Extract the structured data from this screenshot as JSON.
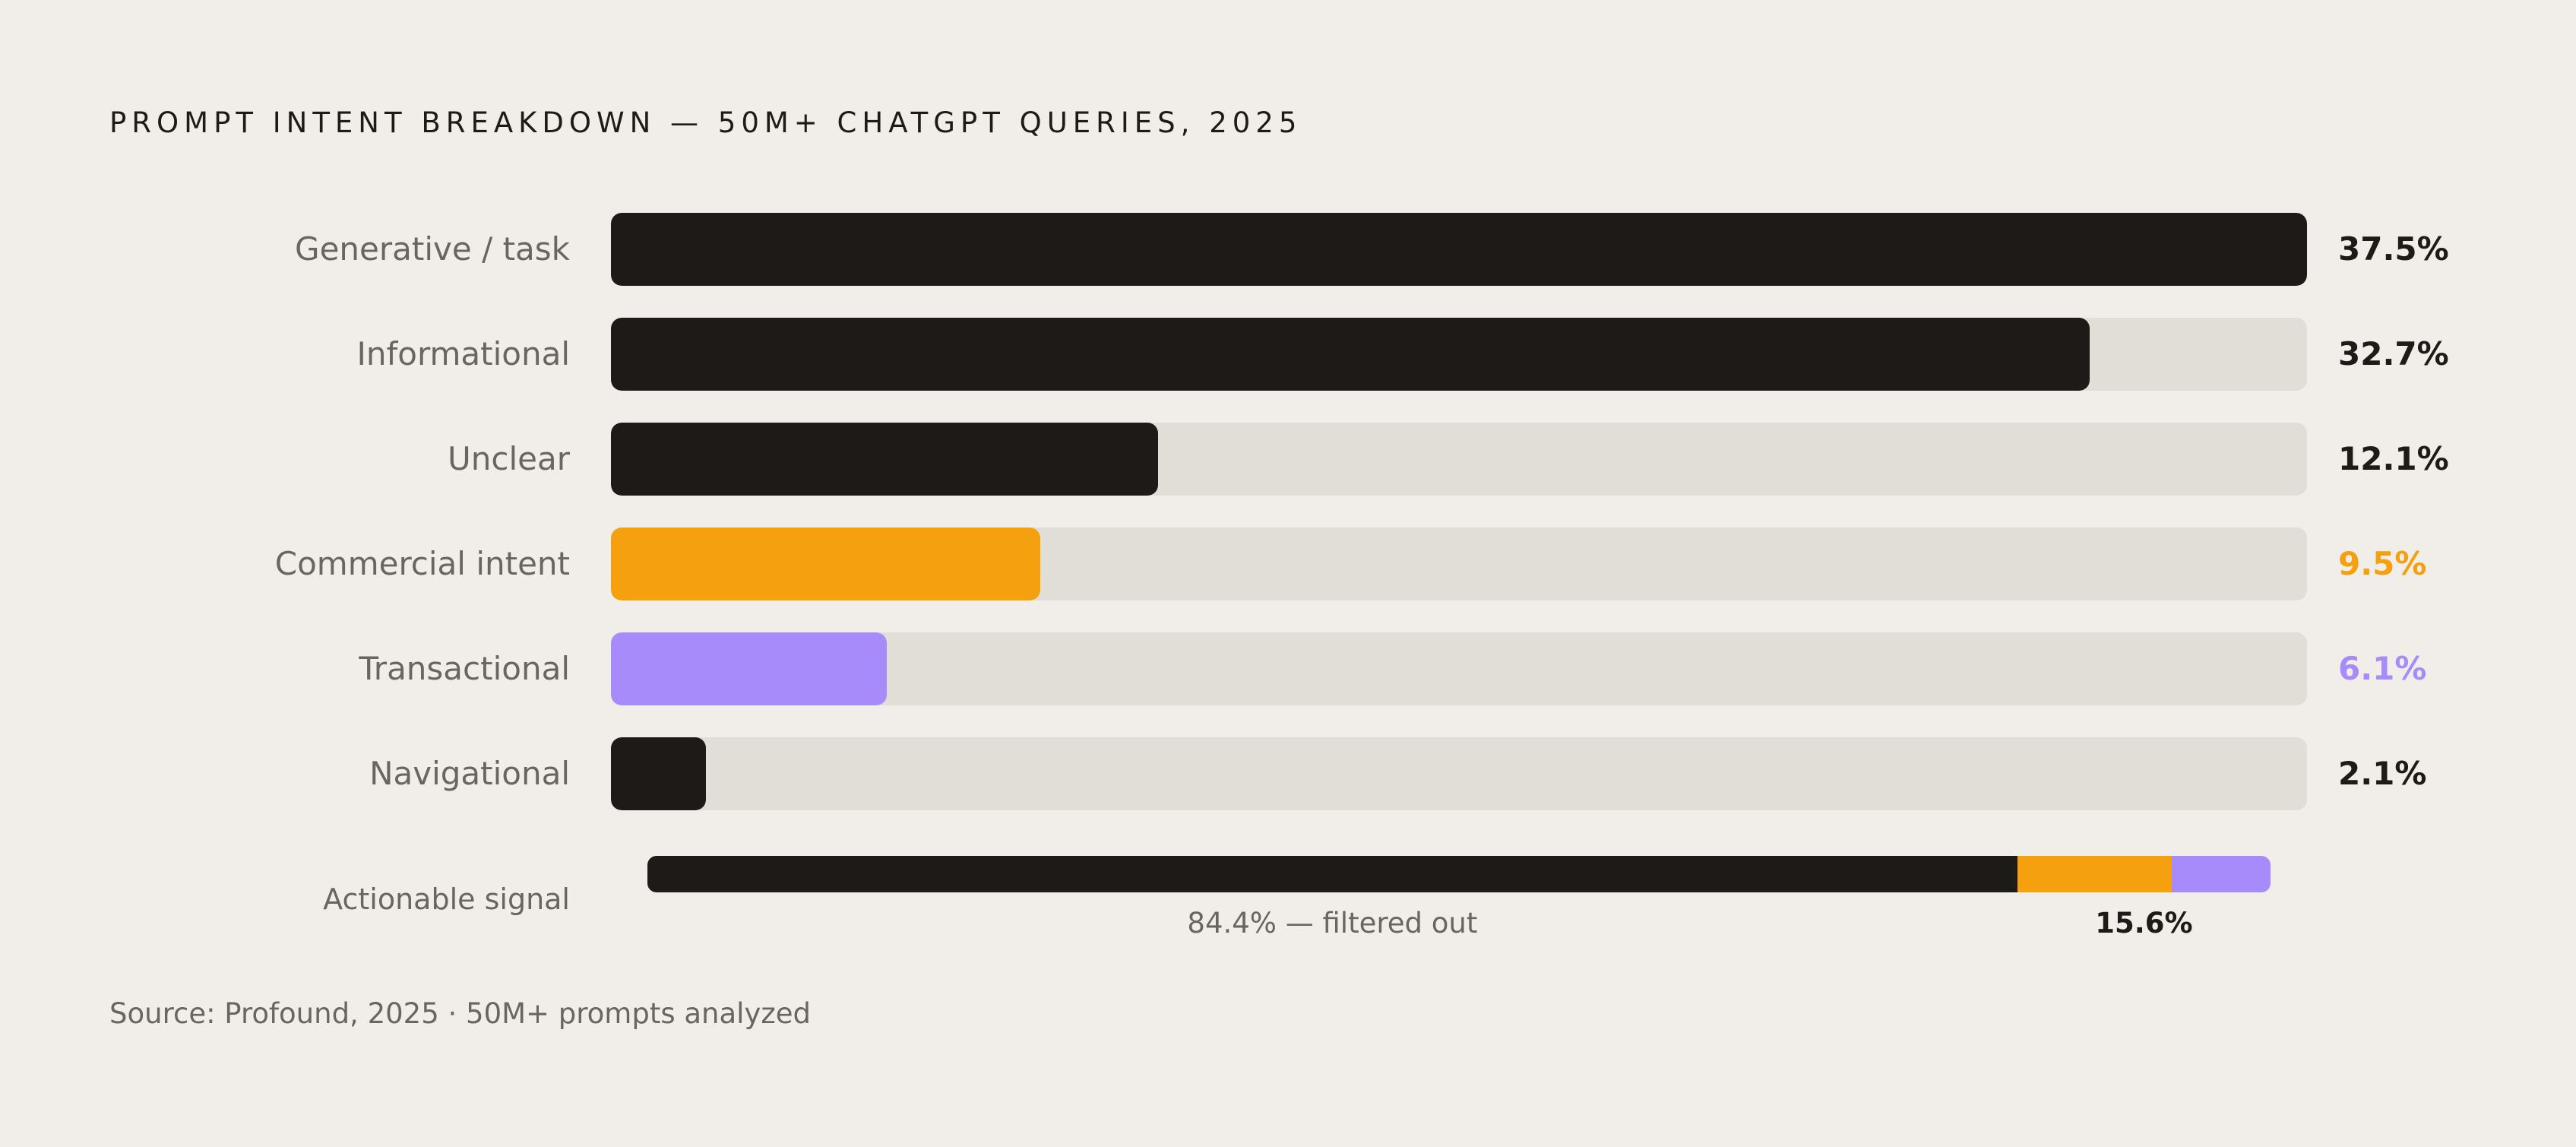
{
  "title": "PROMPT INTENT BREAKDOWN — 50M+ CHATGPT QUERIES, 2025",
  "colors": {
    "background": "#F1EEE9",
    "dark": "#1E1A17",
    "track": "#E1DED8",
    "orange": "#F4A00F",
    "purple": "#A78BFA",
    "muted": "#6B6560"
  },
  "chart_data": {
    "type": "bar",
    "orientation": "horizontal",
    "title": "PROMPT INTENT BREAKDOWN — 50M+ CHATGPT QUERIES, 2025",
    "xlim": [
      0,
      37.5
    ],
    "grid": false,
    "rows": [
      {
        "label": "Generative / task",
        "value": 37.5,
        "display": "37.5%",
        "color": "#1E1A17"
      },
      {
        "label": "Informational",
        "value": 32.7,
        "display": "32.7%",
        "color": "#1E1A17"
      },
      {
        "label": "Unclear",
        "value": 12.1,
        "display": "12.1%",
        "color": "#1E1A17"
      },
      {
        "label": "Commercial intent",
        "value": 9.5,
        "display": "9.5%",
        "color": "#F4A00F"
      },
      {
        "label": "Transactional",
        "value": 6.1,
        "display": "6.1%",
        "color": "#A78BFA"
      },
      {
        "label": "Navigational",
        "value": 2.1,
        "display": "2.1%",
        "color": "#1E1A17"
      }
    ],
    "signal": {
      "label": "Actionable signal",
      "segments": [
        {
          "value": 84.4,
          "color": "#1E1A17"
        },
        {
          "value": 9.5,
          "color": "#F4A00F"
        },
        {
          "value": 6.1,
          "color": "#A78BFA"
        }
      ],
      "filtered_caption": "84.4% — filtered out",
      "actionable_caption": "15.6%"
    }
  },
  "source": "Source: Profound, 2025 · 50M+ prompts analyzed"
}
